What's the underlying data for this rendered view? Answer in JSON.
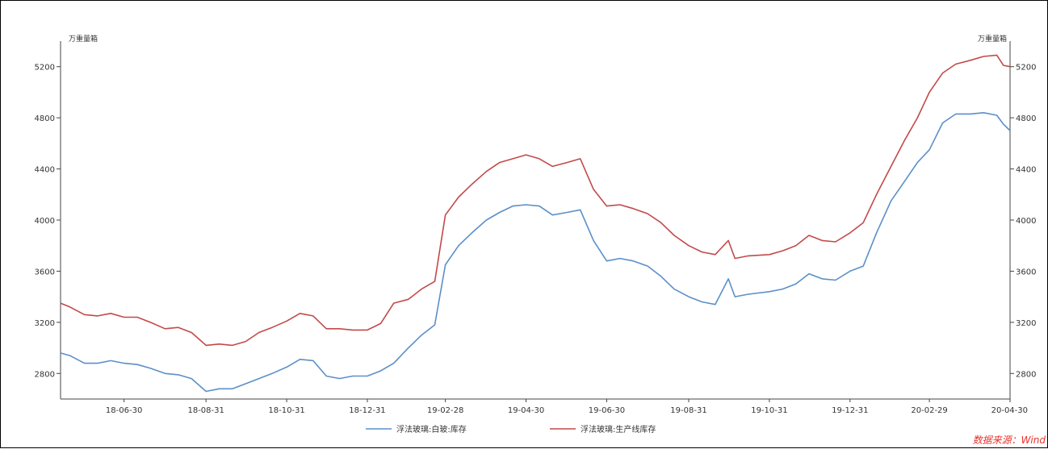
{
  "chart_data": {
    "type": "line",
    "title": "",
    "ylabel_left": "万重量箱",
    "ylabel_right": "万重量箱",
    "ylim": [
      2600,
      5400
    ],
    "y_ticks": [
      2800,
      3200,
      3600,
      4000,
      4400,
      4800,
      5200
    ],
    "x_tick_labels": [
      "18-06-30",
      "18-08-31",
      "18-10-31",
      "18-12-31",
      "19-02-28",
      "19-04-30",
      "19-06-30",
      "19-08-31",
      "19-10-31",
      "19-12-31",
      "20-02-29",
      "20-04-30"
    ],
    "x_start": "2018-05-13",
    "x_end": "2020-04-30",
    "grid": false,
    "legend_position": "bottom",
    "source_text": "数据来源：Wind",
    "series": [
      {
        "name": "浮法玻璃:白玻:库存",
        "color": "#5b8fc9",
        "points": [
          [
            "2018-05-13",
            2960
          ],
          [
            "2018-05-20",
            2940
          ],
          [
            "2018-05-31",
            2880
          ],
          [
            "2018-06-10",
            2880
          ],
          [
            "2018-06-20",
            2900
          ],
          [
            "2018-06-30",
            2880
          ],
          [
            "2018-07-10",
            2870
          ],
          [
            "2018-07-20",
            2840
          ],
          [
            "2018-07-31",
            2800
          ],
          [
            "2018-08-10",
            2790
          ],
          [
            "2018-08-20",
            2760
          ],
          [
            "2018-08-31",
            2660
          ],
          [
            "2018-09-10",
            2680
          ],
          [
            "2018-09-20",
            2680
          ],
          [
            "2018-09-30",
            2720
          ],
          [
            "2018-10-10",
            2760
          ],
          [
            "2018-10-20",
            2800
          ],
          [
            "2018-10-31",
            2850
          ],
          [
            "2018-11-10",
            2910
          ],
          [
            "2018-11-20",
            2900
          ],
          [
            "2018-11-30",
            2780
          ],
          [
            "2018-12-10",
            2760
          ],
          [
            "2018-12-20",
            2780
          ],
          [
            "2018-12-31",
            2780
          ],
          [
            "2019-01-10",
            2820
          ],
          [
            "2019-01-20",
            2880
          ],
          [
            "2019-01-31",
            3000
          ],
          [
            "2019-02-10",
            3100
          ],
          [
            "2019-02-20",
            3180
          ],
          [
            "2019-02-28",
            3650
          ],
          [
            "2019-03-10",
            3800
          ],
          [
            "2019-03-20",
            3900
          ],
          [
            "2019-03-31",
            4000
          ],
          [
            "2019-04-10",
            4060
          ],
          [
            "2019-04-20",
            4110
          ],
          [
            "2019-04-30",
            4120
          ],
          [
            "2019-05-10",
            4110
          ],
          [
            "2019-05-20",
            4040
          ],
          [
            "2019-05-31",
            4060
          ],
          [
            "2019-06-10",
            4080
          ],
          [
            "2019-06-20",
            3840
          ],
          [
            "2019-06-30",
            3680
          ],
          [
            "2019-07-10",
            3700
          ],
          [
            "2019-07-20",
            3680
          ],
          [
            "2019-07-31",
            3640
          ],
          [
            "2019-08-10",
            3560
          ],
          [
            "2019-08-20",
            3460
          ],
          [
            "2019-08-31",
            3400
          ],
          [
            "2019-09-10",
            3360
          ],
          [
            "2019-09-20",
            3340
          ],
          [
            "2019-09-30",
            3540
          ],
          [
            "2019-10-05",
            3400
          ],
          [
            "2019-10-15",
            3420
          ],
          [
            "2019-10-31",
            3440
          ],
          [
            "2019-11-10",
            3460
          ],
          [
            "2019-11-20",
            3500
          ],
          [
            "2019-11-30",
            3580
          ],
          [
            "2019-12-10",
            3540
          ],
          [
            "2019-12-20",
            3530
          ],
          [
            "2019-12-31",
            3600
          ],
          [
            "2020-01-10",
            3640
          ],
          [
            "2020-01-20",
            3900
          ],
          [
            "2020-01-31",
            4150
          ],
          [
            "2020-02-10",
            4300
          ],
          [
            "2020-02-20",
            4450
          ],
          [
            "2020-02-29",
            4550
          ],
          [
            "2020-03-10",
            4760
          ],
          [
            "2020-03-20",
            4830
          ],
          [
            "2020-03-31",
            4830
          ],
          [
            "2020-04-10",
            4840
          ],
          [
            "2020-04-20",
            4820
          ],
          [
            "2020-04-25",
            4750
          ],
          [
            "2020-04-30",
            4700
          ]
        ]
      },
      {
        "name": "浮法玻璃:生产线库存",
        "color": "#c24a4a",
        "points": [
          [
            "2018-05-13",
            3350
          ],
          [
            "2018-05-20",
            3320
          ],
          [
            "2018-05-31",
            3260
          ],
          [
            "2018-06-10",
            3250
          ],
          [
            "2018-06-20",
            3270
          ],
          [
            "2018-06-30",
            3240
          ],
          [
            "2018-07-10",
            3240
          ],
          [
            "2018-07-20",
            3200
          ],
          [
            "2018-07-31",
            3150
          ],
          [
            "2018-08-10",
            3160
          ],
          [
            "2018-08-20",
            3120
          ],
          [
            "2018-08-31",
            3020
          ],
          [
            "2018-09-10",
            3030
          ],
          [
            "2018-09-20",
            3020
          ],
          [
            "2018-09-30",
            3050
          ],
          [
            "2018-10-10",
            3120
          ],
          [
            "2018-10-20",
            3160
          ],
          [
            "2018-10-31",
            3210
          ],
          [
            "2018-11-10",
            3270
          ],
          [
            "2018-11-20",
            3250
          ],
          [
            "2018-11-30",
            3150
          ],
          [
            "2018-12-10",
            3150
          ],
          [
            "2018-12-20",
            3140
          ],
          [
            "2018-12-31",
            3140
          ],
          [
            "2019-01-10",
            3190
          ],
          [
            "2019-01-20",
            3350
          ],
          [
            "2019-01-31",
            3380
          ],
          [
            "2019-02-10",
            3460
          ],
          [
            "2019-02-20",
            3520
          ],
          [
            "2019-02-28",
            4040
          ],
          [
            "2019-03-10",
            4180
          ],
          [
            "2019-03-20",
            4280
          ],
          [
            "2019-03-31",
            4380
          ],
          [
            "2019-04-10",
            4450
          ],
          [
            "2019-04-20",
            4480
          ],
          [
            "2019-04-30",
            4510
          ],
          [
            "2019-05-10",
            4480
          ],
          [
            "2019-05-20",
            4420
          ],
          [
            "2019-05-31",
            4450
          ],
          [
            "2019-06-10",
            4480
          ],
          [
            "2019-06-20",
            4240
          ],
          [
            "2019-06-30",
            4110
          ],
          [
            "2019-07-10",
            4120
          ],
          [
            "2019-07-20",
            4090
          ],
          [
            "2019-07-31",
            4050
          ],
          [
            "2019-08-10",
            3980
          ],
          [
            "2019-08-20",
            3880
          ],
          [
            "2019-08-31",
            3800
          ],
          [
            "2019-09-10",
            3750
          ],
          [
            "2019-09-20",
            3730
          ],
          [
            "2019-09-30",
            3840
          ],
          [
            "2019-10-05",
            3700
          ],
          [
            "2019-10-15",
            3720
          ],
          [
            "2019-10-31",
            3730
          ],
          [
            "2019-11-10",
            3760
          ],
          [
            "2019-11-20",
            3800
          ],
          [
            "2019-11-30",
            3880
          ],
          [
            "2019-12-10",
            3840
          ],
          [
            "2019-12-20",
            3830
          ],
          [
            "2019-12-31",
            3900
          ],
          [
            "2020-01-10",
            3980
          ],
          [
            "2020-01-20",
            4200
          ],
          [
            "2020-01-31",
            4420
          ],
          [
            "2020-02-10",
            4620
          ],
          [
            "2020-02-20",
            4800
          ],
          [
            "2020-02-29",
            5000
          ],
          [
            "2020-03-10",
            5150
          ],
          [
            "2020-03-20",
            5220
          ],
          [
            "2020-03-31",
            5250
          ],
          [
            "2020-04-10",
            5280
          ],
          [
            "2020-04-20",
            5290
          ],
          [
            "2020-04-25",
            5210
          ],
          [
            "2020-04-30",
            5200
          ]
        ]
      }
    ]
  }
}
